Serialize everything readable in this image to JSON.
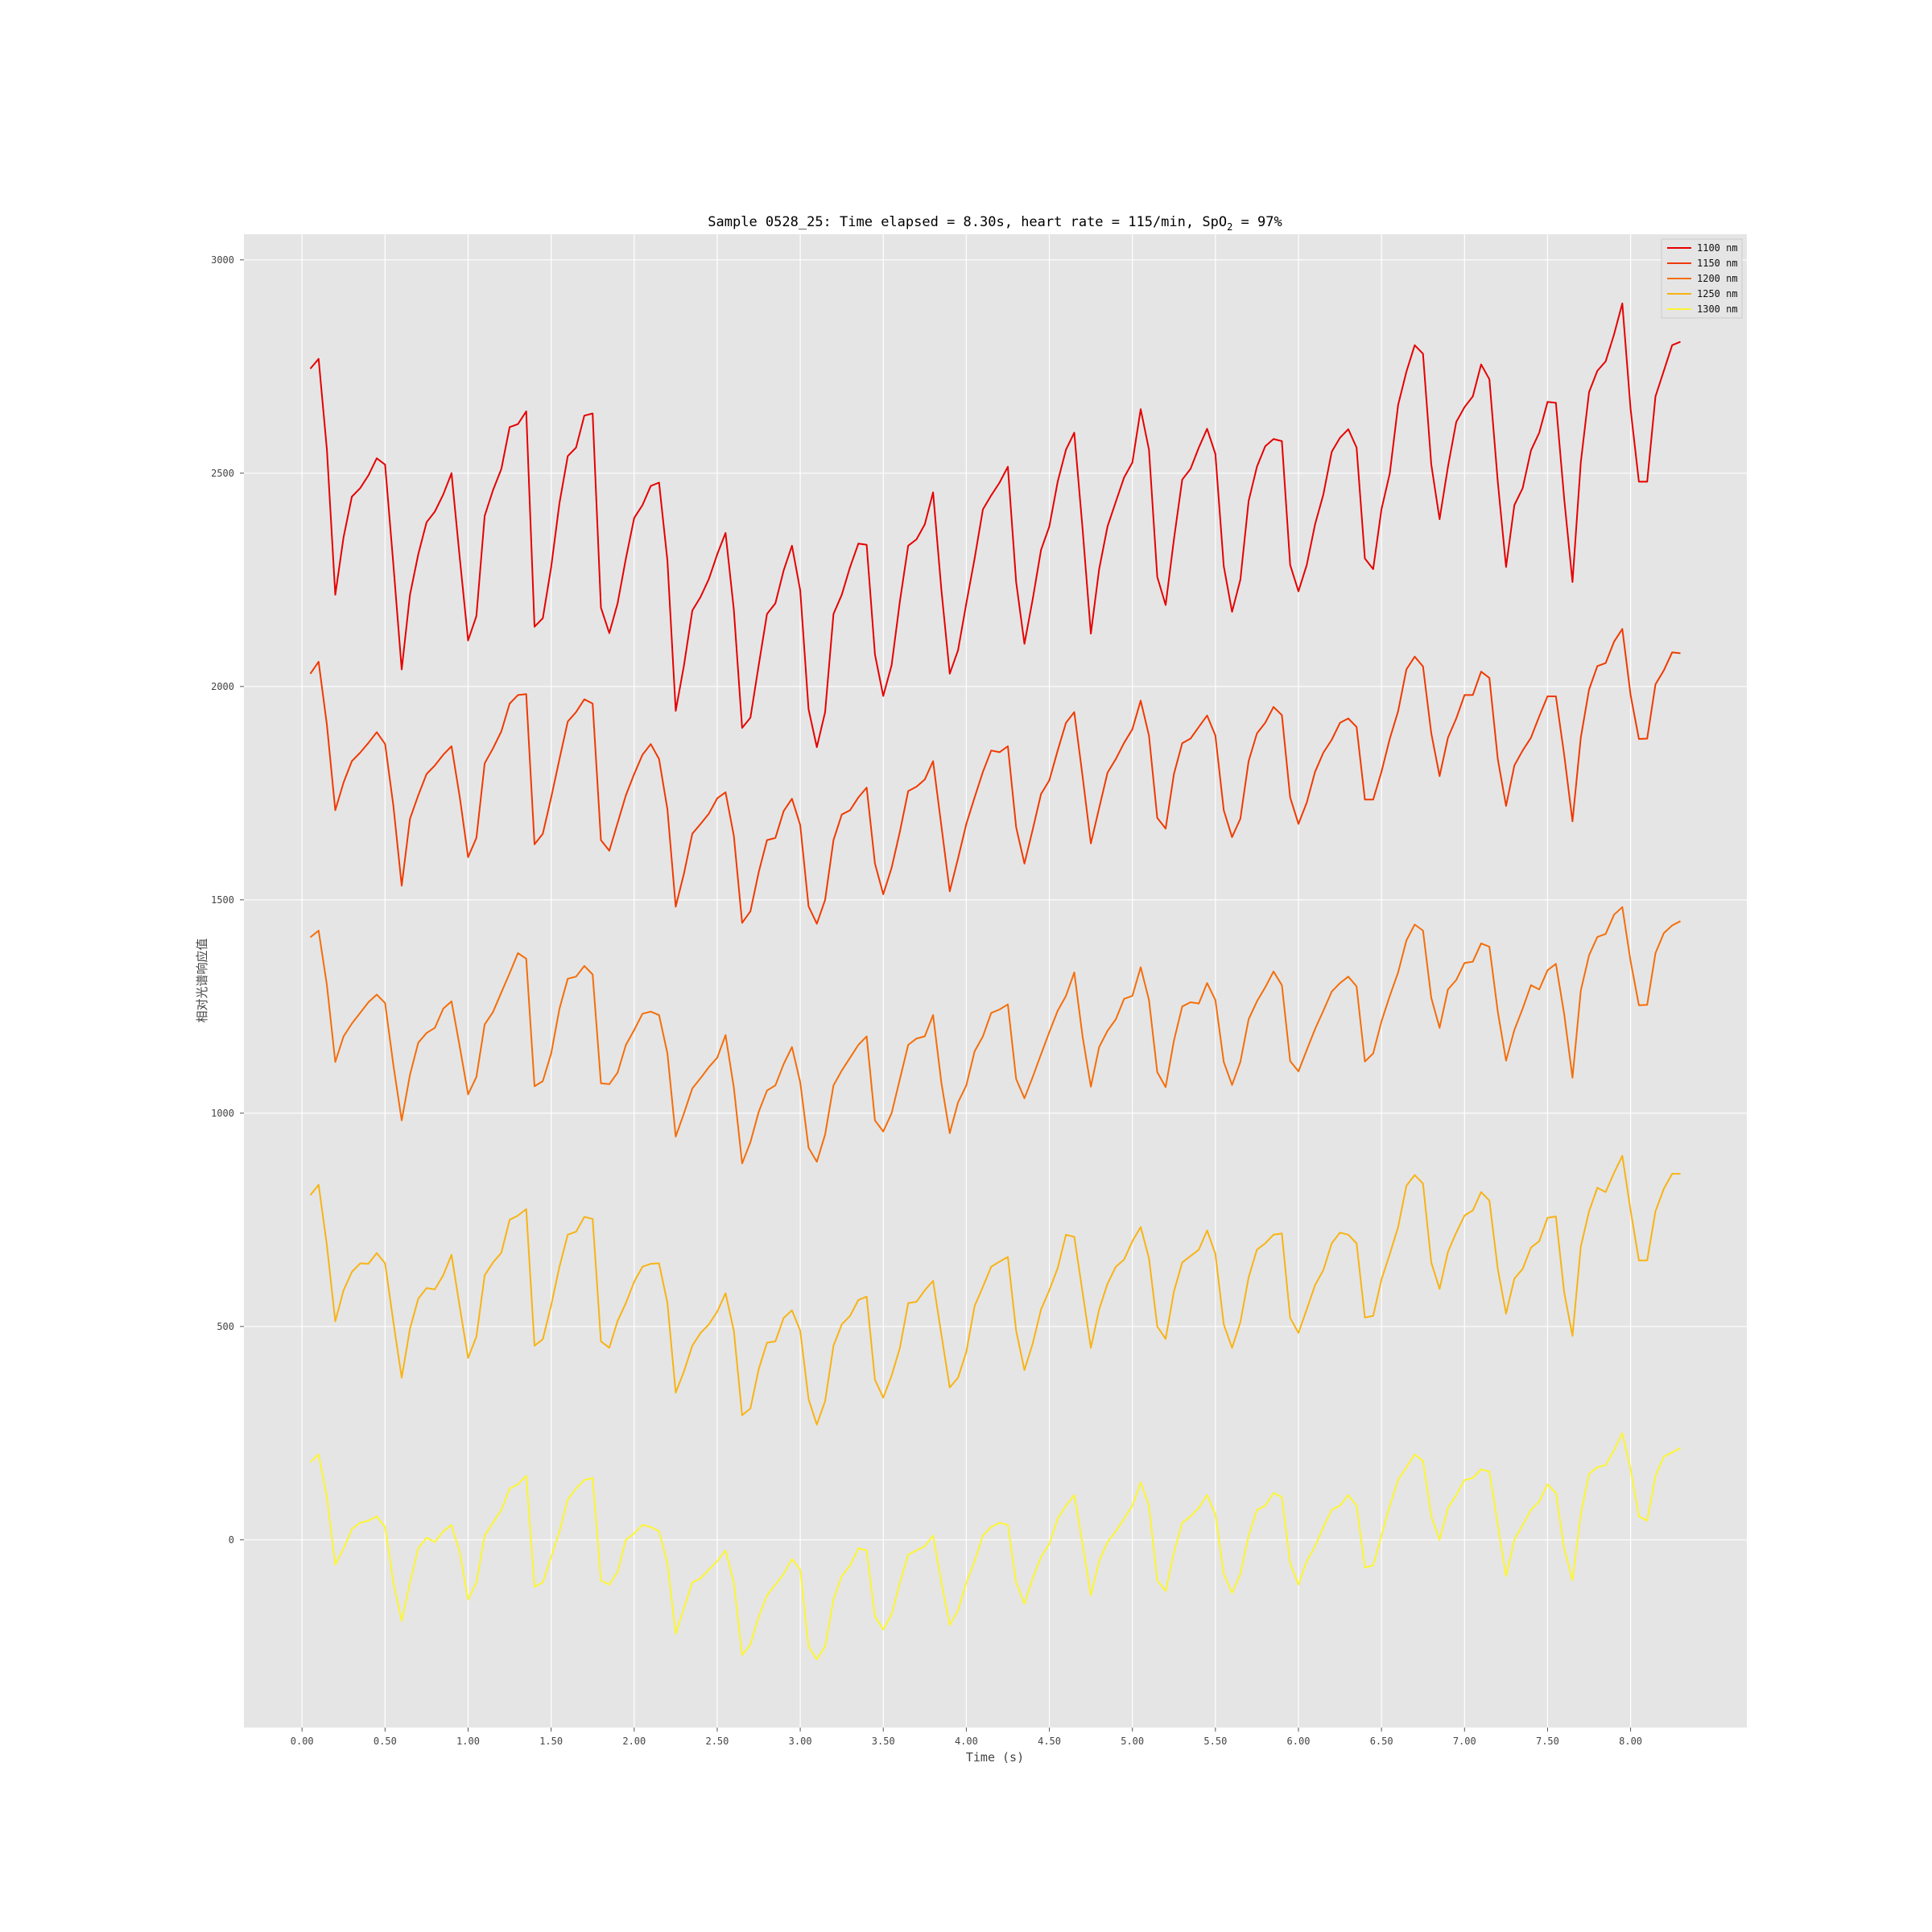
{
  "chart_data": {
    "type": "line",
    "title_main": "Sample 0528_25: Time elapsed = 8.30s, heart rate = 115/min, SpO",
    "title_sub": "2",
    "title_tail": " = 97%",
    "xlabel": "Time (s)",
    "ylabel": "相对光谱响应值",
    "xlim": [
      -0.35,
      8.7
    ],
    "ylim": [
      -440,
      3060
    ],
    "x_ticks": [
      0,
      0.5,
      1,
      1.5,
      2,
      2.5,
      3,
      3.5,
      4,
      4.5,
      5,
      5.5,
      6,
      6.5,
      7,
      7.5,
      8
    ],
    "x_tick_labels": [
      "0.00",
      "0.50",
      "1.00",
      "1.50",
      "2.00",
      "2.50",
      "3.00",
      "3.50",
      "4.00",
      "4.50",
      "5.00",
      "5.50",
      "6.00",
      "6.50",
      "7.00",
      "7.50",
      "8.00"
    ],
    "y_ticks": [
      0,
      500,
      1000,
      1500,
      2000,
      2500,
      3000
    ],
    "y_tick_labels": [
      "0",
      "500",
      "1000",
      "1500",
      "2000",
      "2500",
      "3000"
    ],
    "grid": true,
    "legend_position": "top-right",
    "x_start": 0.05,
    "x_step": 0.05,
    "series": [
      {
        "name": "1100 nm",
        "color": "#e60000",
        "values": [
          2745,
          2768,
          2555,
          2215,
          2350,
          2445,
          2465,
          2495,
          2535,
          2520,
          2285,
          2040,
          2215,
          2310,
          2385,
          2410,
          2450,
          2500,
          2300,
          2108,
          2165,
          2400,
          2460,
          2510,
          2608,
          2615,
          2645,
          2140,
          2160,
          2280,
          2430,
          2540,
          2560,
          2635,
          2640,
          2185,
          2125,
          2195,
          2300,
          2395,
          2425,
          2470,
          2478,
          2295,
          1943,
          2050,
          2178,
          2210,
          2252,
          2310,
          2360,
          2180,
          1903,
          1927,
          2050,
          2170,
          2195,
          2272,
          2330,
          2225,
          1947,
          1858,
          1940,
          2170,
          2215,
          2280,
          2335,
          2332,
          2075,
          1978,
          2050,
          2200,
          2330,
          2345,
          2380,
          2455,
          2225,
          2030,
          2085,
          2195,
          2300,
          2415,
          2448,
          2478,
          2515,
          2245,
          2100,
          2205,
          2320,
          2375,
          2480,
          2555,
          2595,
          2370,
          2124,
          2275,
          2375,
          2433,
          2490,
          2525,
          2650,
          2555,
          2257,
          2191,
          2345,
          2485,
          2510,
          2560,
          2604,
          2545,
          2282,
          2175,
          2250,
          2435,
          2515,
          2563,
          2580,
          2575,
          2285,
          2223,
          2285,
          2380,
          2450,
          2550,
          2583,
          2603,
          2560,
          2300,
          2275,
          2415,
          2500,
          2660,
          2738,
          2800,
          2780,
          2520,
          2392,
          2515,
          2620,
          2655,
          2680,
          2755,
          2720,
          2480,
          2280,
          2425,
          2465,
          2553,
          2595,
          2667,
          2665,
          2440,
          2245,
          2525,
          2690,
          2740,
          2762,
          2825,
          2898,
          2650,
          2480,
          2480,
          2680,
          2740,
          2800,
          2808
        ]
      },
      {
        "name": "1150 nm",
        "color": "#f03a00",
        "values": [
          2030,
          2058,
          1910,
          1710,
          1775,
          1825,
          1845,
          1868,
          1893,
          1865,
          1720,
          1533,
          1690,
          1745,
          1795,
          1815,
          1840,
          1860,
          1740,
          1600,
          1645,
          1820,
          1855,
          1895,
          1960,
          1980,
          1982,
          1630,
          1655,
          1740,
          1830,
          1918,
          1940,
          1970,
          1960,
          1640,
          1615,
          1680,
          1745,
          1795,
          1840,
          1865,
          1830,
          1712,
          1484,
          1562,
          1655,
          1678,
          1702,
          1738,
          1752,
          1650,
          1446,
          1473,
          1565,
          1640,
          1645,
          1708,
          1737,
          1675,
          1485,
          1444,
          1500,
          1640,
          1700,
          1710,
          1740,
          1763,
          1585,
          1513,
          1575,
          1660,
          1755,
          1765,
          1782,
          1825,
          1672,
          1520,
          1597,
          1678,
          1740,
          1800,
          1850,
          1846,
          1860,
          1670,
          1585,
          1665,
          1748,
          1780,
          1850,
          1915,
          1940,
          1790,
          1632,
          1715,
          1798,
          1830,
          1868,
          1900,
          1967,
          1885,
          1692,
          1667,
          1795,
          1867,
          1878,
          1905,
          1932,
          1885,
          1710,
          1647,
          1690,
          1825,
          1890,
          1915,
          1952,
          1933,
          1740,
          1678,
          1728,
          1800,
          1845,
          1875,
          1915,
          1925,
          1905,
          1735,
          1735,
          1800,
          1878,
          1942,
          2040,
          2070,
          2047,
          1890,
          1790,
          1880,
          1925,
          1980,
          1980,
          2035,
          2020,
          1830,
          1720,
          1815,
          1850,
          1880,
          1930,
          1977,
          1977,
          1840,
          1684,
          1880,
          1993,
          2048,
          2055,
          2105,
          2135,
          1980,
          1877,
          1878,
          2005,
          2038,
          2080,
          2078
        ]
      },
      {
        "name": "1200 nm",
        "color": "#f46e0a",
        "values": [
          1412,
          1428,
          1300,
          1120,
          1180,
          1210,
          1235,
          1260,
          1278,
          1258,
          1112,
          983,
          1090,
          1165,
          1188,
          1200,
          1245,
          1262,
          1155,
          1044,
          1085,
          1208,
          1237,
          1283,
          1328,
          1375,
          1362,
          1063,
          1075,
          1140,
          1245,
          1315,
          1320,
          1345,
          1325,
          1070,
          1068,
          1095,
          1160,
          1195,
          1233,
          1238,
          1230,
          1140,
          945,
          1000,
          1058,
          1082,
          1108,
          1130,
          1183,
          1060,
          882,
          932,
          1003,
          1053,
          1065,
          1115,
          1155,
          1072,
          919,
          886,
          950,
          1065,
          1100,
          1130,
          1160,
          1180,
          983,
          957,
          1000,
          1080,
          1160,
          1175,
          1180,
          1230,
          1070,
          953,
          1025,
          1065,
          1145,
          1180,
          1235,
          1243,
          1255,
          1080,
          1035,
          1085,
          1138,
          1190,
          1240,
          1275,
          1330,
          1180,
          1062,
          1155,
          1193,
          1220,
          1268,
          1275,
          1342,
          1265,
          1096,
          1061,
          1170,
          1250,
          1260,
          1257,
          1305,
          1265,
          1120,
          1066,
          1120,
          1220,
          1262,
          1295,
          1332,
          1300,
          1122,
          1098,
          1148,
          1197,
          1240,
          1285,
          1305,
          1320,
          1297,
          1121,
          1140,
          1215,
          1275,
          1330,
          1405,
          1442,
          1428,
          1270,
          1200,
          1290,
          1312,
          1352,
          1355,
          1398,
          1390,
          1238,
          1123,
          1195,
          1245,
          1300,
          1290,
          1335,
          1350,
          1232,
          1083,
          1287,
          1370,
          1413,
          1420,
          1465,
          1483,
          1356,
          1253,
          1254,
          1375,
          1422,
          1440,
          1450
        ]
      },
      {
        "name": "1250 nm",
        "color": "#f8b314",
        "values": [
          808,
          832,
          690,
          512,
          585,
          628,
          648,
          647,
          672,
          648,
          510,
          380,
          495,
          565,
          590,
          587,
          620,
          668,
          545,
          426,
          476,
          620,
          650,
          673,
          750,
          760,
          775,
          455,
          470,
          550,
          640,
          715,
          722,
          757,
          752,
          465,
          450,
          513,
          555,
          605,
          640,
          647,
          648,
          555,
          345,
          395,
          455,
          485,
          505,
          535,
          578,
          490,
          292,
          308,
          400,
          462,
          465,
          520,
          538,
          490,
          330,
          270,
          325,
          455,
          505,
          525,
          562,
          570,
          375,
          333,
          385,
          450,
          555,
          558,
          585,
          607,
          480,
          357,
          380,
          440,
          548,
          593,
          640,
          652,
          663,
          490,
          398,
          460,
          540,
          585,
          637,
          715,
          710,
          580,
          450,
          540,
          600,
          640,
          657,
          700,
          733,
          660,
          500,
          471,
          582,
          650,
          665,
          680,
          725,
          670,
          505,
          450,
          510,
          615,
          680,
          695,
          715,
          718,
          520,
          485,
          540,
          597,
          632,
          695,
          720,
          715,
          695,
          521,
          525,
          610,
          670,
          733,
          830,
          855,
          835,
          650,
          588,
          675,
          720,
          760,
          772,
          815,
          795,
          635,
          530,
          612,
          635,
          685,
          700,
          755,
          758,
          580,
          478,
          687,
          770,
          825,
          815,
          860,
          900,
          772,
          655,
          655,
          770,
          823,
          858,
          858
        ]
      },
      {
        "name": "1300 nm",
        "color": "#fdf531",
        "values": [
          182,
          200,
          100,
          -58,
          -20,
          25,
          40,
          45,
          55,
          30,
          -100,
          -190,
          -100,
          -20,
          5,
          -5,
          20,
          35,
          -30,
          -140,
          -100,
          10,
          40,
          70,
          120,
          130,
          150,
          -110,
          -100,
          -40,
          20,
          95,
          120,
          140,
          145,
          -95,
          -105,
          -75,
          0,
          15,
          35,
          30,
          20,
          -55,
          -220,
          -160,
          -100,
          -90,
          -70,
          -50,
          -25,
          -100,
          -270,
          -245,
          -180,
          -130,
          -105,
          -80,
          -45,
          -70,
          -250,
          -280,
          -250,
          -140,
          -85,
          -60,
          -20,
          -25,
          -180,
          -210,
          -175,
          -100,
          -35,
          -25,
          -15,
          10,
          -100,
          -200,
          -165,
          -100,
          -50,
          10,
          30,
          40,
          35,
          -100,
          -150,
          -90,
          -40,
          -10,
          50,
          80,
          105,
          -10,
          -130,
          -50,
          -5,
          20,
          50,
          80,
          135,
          80,
          -95,
          -120,
          -30,
          40,
          55,
          75,
          105,
          60,
          -80,
          -125,
          -80,
          10,
          70,
          80,
          110,
          100,
          -55,
          -105,
          -50,
          -15,
          30,
          70,
          80,
          105,
          80,
          -65,
          -60,
          10,
          80,
          140,
          170,
          200,
          185,
          55,
          0,
          75,
          105,
          140,
          145,
          165,
          160,
          35,
          -85,
          0,
          35,
          70,
          90,
          130,
          110,
          -20,
          -95,
          60,
          155,
          170,
          175,
          210,
          250,
          165,
          55,
          45,
          150,
          195,
          205,
          215
        ]
      }
    ]
  }
}
